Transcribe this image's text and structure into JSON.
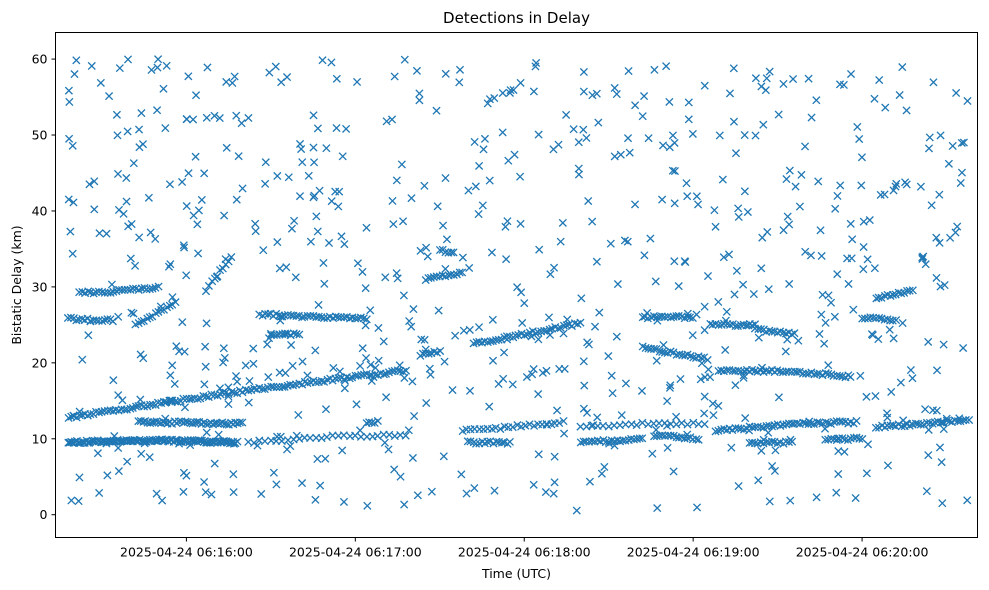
{
  "chart_data": {
    "type": "scatter",
    "title": "Detections in Delay",
    "xlabel": "Time (UTC)",
    "ylabel": "Bistatic Delay (km)",
    "x_units": "seconds after 2025-04-24 06:15:00 UTC",
    "xlim": [
      13.5,
      341
    ],
    "ylim": [
      -3,
      63.5
    ],
    "x_ticks": [
      {
        "value": 60,
        "label": "2025-04-24 06:16:00"
      },
      {
        "value": 120,
        "label": "2025-04-24 06:17:00"
      },
      {
        "value": 180,
        "label": "2025-04-24 06:18:00"
      },
      {
        "value": 240,
        "label": "2025-04-24 06:19:00"
      },
      {
        "value": 300,
        "label": "2025-04-24 06:20:00"
      }
    ],
    "y_ticks": [
      0,
      10,
      20,
      30,
      40,
      50,
      60
    ],
    "marker": "x",
    "color": "#1f77b4",
    "grid": false,
    "series": [
      {
        "name": "Detections",
        "tracks": [
          {
            "x_start": 18,
            "x_end": 138,
            "y_start": 12.8,
            "y_end": 19.0,
            "step": 1.0
          },
          {
            "x_start": 18,
            "x_end": 78,
            "y_start": 9.5,
            "y_end": 9.5,
            "step": 0.5
          },
          {
            "x_start": 43,
            "x_end": 80,
            "y_start": 12.2,
            "y_end": 12.0,
            "step": 0.8
          },
          {
            "x_start": 18,
            "x_end": 34,
            "y_start": 25.8,
            "y_end": 25.6,
            "step": 1.0
          },
          {
            "x_start": 22,
            "x_end": 34,
            "y_start": 29.3,
            "y_end": 29.3,
            "step": 1.0
          },
          {
            "x_start": 35,
            "x_end": 50,
            "y_start": 29.6,
            "y_end": 29.9,
            "step": 1.0
          },
          {
            "x_start": 42,
            "x_end": 56,
            "y_start": 25.0,
            "y_end": 28.0,
            "step": 1.0
          },
          {
            "x_start": 67,
            "x_end": 76,
            "y_start": 29.6,
            "y_end": 34.0,
            "step": 1.0
          },
          {
            "x_start": 86,
            "x_end": 124,
            "y_start": 26.4,
            "y_end": 25.8,
            "step": 1.0
          },
          {
            "x_start": 90,
            "x_end": 100,
            "y_start": 23.8,
            "y_end": 23.8,
            "step": 1.0
          },
          {
            "x_start": 82,
            "x_end": 138,
            "y_start": 9.5,
            "y_end": 10.5,
            "step": 2.0
          },
          {
            "x_start": 124,
            "x_end": 128,
            "y_start": 12.2,
            "y_end": 12.2,
            "step": 1.0
          },
          {
            "x_start": 145,
            "x_end": 158,
            "y_start": 31.0,
            "y_end": 31.8,
            "step": 1.0
          },
          {
            "x_start": 143,
            "x_end": 150,
            "y_start": 21.0,
            "y_end": 21.5,
            "step": 1.0
          },
          {
            "x_start": 150,
            "x_end": 155,
            "y_start": 34.8,
            "y_end": 34.5,
            "step": 1.0
          },
          {
            "x_start": 162,
            "x_end": 200,
            "y_start": 22.5,
            "y_end": 25.2,
            "step": 1.0
          },
          {
            "x_start": 158,
            "x_end": 195,
            "y_start": 11.0,
            "y_end": 12.2,
            "step": 1.5
          },
          {
            "x_start": 160,
            "x_end": 175,
            "y_start": 9.5,
            "y_end": 9.5,
            "step": 1.0
          },
          {
            "x_start": 200,
            "x_end": 222,
            "y_start": 9.5,
            "y_end": 10.0,
            "step": 1.0
          },
          {
            "x_start": 200,
            "x_end": 245,
            "y_start": 11.5,
            "y_end": 12.0,
            "step": 2.0
          },
          {
            "x_start": 222,
            "x_end": 240,
            "y_start": 26.0,
            "y_end": 26.0,
            "step": 1.0
          },
          {
            "x_start": 222,
            "x_end": 245,
            "y_start": 22.0,
            "y_end": 20.5,
            "step": 1.0
          },
          {
            "x_start": 226,
            "x_end": 242,
            "y_start": 10.5,
            "y_end": 10.0,
            "step": 1.0
          },
          {
            "x_start": 246,
            "x_end": 262,
            "y_start": 25.0,
            "y_end": 25.0,
            "step": 1.0
          },
          {
            "x_start": 249,
            "x_end": 296,
            "y_start": 19.0,
            "y_end": 18.2,
            "step": 1.0
          },
          {
            "x_start": 248,
            "x_end": 298,
            "y_start": 11.0,
            "y_end": 12.2,
            "step": 1.0
          },
          {
            "x_start": 262,
            "x_end": 276,
            "y_start": 24.4,
            "y_end": 23.8,
            "step": 1.0
          },
          {
            "x_start": 260,
            "x_end": 275,
            "y_start": 9.5,
            "y_end": 9.5,
            "step": 1.0
          },
          {
            "x_start": 300,
            "x_end": 312,
            "y_start": 26.0,
            "y_end": 25.5,
            "step": 1.0
          },
          {
            "x_start": 305,
            "x_end": 318,
            "y_start": 28.5,
            "y_end": 29.5,
            "step": 1.0
          },
          {
            "x_start": 305,
            "x_end": 338,
            "y_start": 11.5,
            "y_end": 12.5,
            "step": 1.0
          },
          {
            "x_start": 287,
            "x_end": 300,
            "y_start": 10.0,
            "y_end": 10.0,
            "step": 1.0
          }
        ],
        "clutter": {
          "x_range": [
            18,
            338
          ],
          "y_range": [
            0.5,
            60
          ],
          "count": 720
        }
      }
    ]
  }
}
